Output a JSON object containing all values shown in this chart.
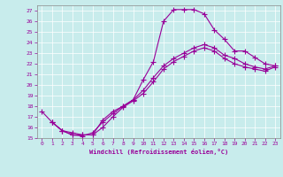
{
  "xlabel": "Windchill (Refroidissement éolien,°C)",
  "bg_color": "#c8ecec",
  "line_color": "#990099",
  "xlim": [
    -0.5,
    23.5
  ],
  "ylim": [
    15,
    27.5
  ],
  "xticks": [
    0,
    1,
    2,
    3,
    4,
    5,
    6,
    7,
    8,
    9,
    10,
    11,
    12,
    13,
    14,
    15,
    16,
    17,
    18,
    19,
    20,
    21,
    22,
    23
  ],
  "yticks": [
    15,
    16,
    17,
    18,
    19,
    20,
    21,
    22,
    23,
    24,
    25,
    26,
    27
  ],
  "line1_x": [
    0,
    1,
    2,
    3,
    4,
    5,
    6,
    7,
    8,
    9,
    10,
    11,
    12,
    13,
    14,
    15,
    16,
    17,
    18,
    19,
    20,
    21,
    22,
    23
  ],
  "line1_y": [
    17.5,
    16.5,
    15.7,
    15.3,
    15.3,
    15.3,
    16.7,
    17.5,
    18.0,
    18.6,
    20.5,
    22.2,
    26.0,
    27.1,
    27.1,
    27.1,
    26.7,
    25.2,
    24.3,
    23.2,
    23.2,
    22.6,
    22.0,
    21.8
  ],
  "line2_x": [
    1,
    2,
    3,
    4,
    5,
    6,
    7,
    8,
    9,
    10,
    11,
    12,
    13,
    14,
    15,
    16,
    17,
    18,
    19,
    20,
    21,
    22,
    23
  ],
  "line2_y": [
    16.5,
    15.7,
    15.3,
    15.2,
    15.5,
    16.5,
    17.3,
    18.0,
    18.6,
    19.5,
    20.7,
    21.8,
    22.5,
    23.0,
    23.5,
    23.8,
    23.5,
    22.8,
    22.5,
    22.0,
    21.7,
    21.5,
    21.8
  ],
  "line3_x": [
    1,
    2,
    3,
    4,
    5,
    6,
    7,
    8,
    9,
    10,
    11,
    12,
    13,
    14,
    15,
    16,
    17,
    18,
    19,
    20,
    21,
    22,
    23
  ],
  "line3_y": [
    16.5,
    15.7,
    15.5,
    15.3,
    15.3,
    16.0,
    17.0,
    17.9,
    18.5,
    19.2,
    20.3,
    21.5,
    22.2,
    22.7,
    23.2,
    23.5,
    23.2,
    22.5,
    22.0,
    21.7,
    21.5,
    21.3,
    21.7
  ]
}
